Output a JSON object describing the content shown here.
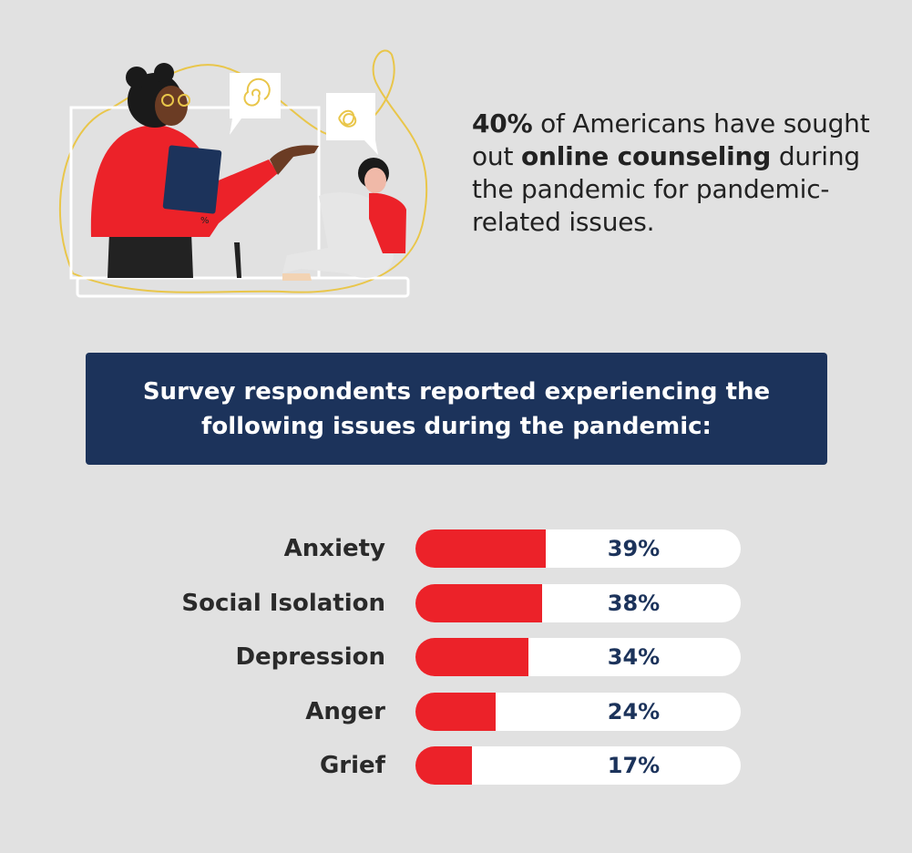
{
  "stat": {
    "pct": "40%",
    "t1": " of Americans have sought out ",
    "bold": "online counseling",
    "t2": " during the pandemic for pandemic-related issues."
  },
  "banner": {
    "title": "Survey respondents reported experiencing the following issues during the pandemic:"
  },
  "illustration": {
    "tablet_mark": "%"
  },
  "colors": {
    "accent_red": "#ec2229",
    "navy": "#1c335b",
    "background": "#e1e1e1",
    "track": "#ffffff"
  },
  "chart_data": {
    "type": "bar",
    "orientation": "horizontal",
    "categories": [
      "Anxiety",
      "Social Isolation",
      "Depression",
      "Anger",
      "Grief"
    ],
    "values": [
      39,
      38,
      34,
      24,
      17
    ],
    "value_labels": [
      "39%",
      "38%",
      "34%",
      "24%",
      "17%"
    ],
    "xlim": [
      0,
      100
    ]
  }
}
